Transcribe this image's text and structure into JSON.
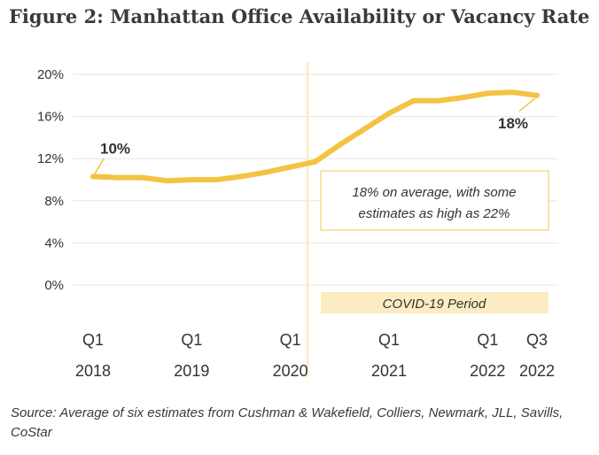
{
  "title": "Figure 2: Manhattan Office Availability or Vacancy Rate",
  "source": "Source: Average of six estimates from Cushman & Wakefield, Colliers, Newmark, JLL, Savills, CoStar",
  "colors": {
    "line": "#f5c242",
    "annotation_fill": "#fbecc1",
    "annotation_border": "#f8e3a6",
    "grid": "#e6e6e6"
  },
  "chart_data": {
    "type": "line",
    "ylim": [
      0,
      20
    ],
    "yticks": [
      "20%",
      "16%",
      "12%",
      "8%",
      "4%",
      "0%"
    ],
    "ytick_values": [
      20,
      16,
      12,
      8,
      4,
      0
    ],
    "xtick_labels": [
      {
        "quarter": "Q1",
        "year": "2018",
        "x": 0
      },
      {
        "quarter": "Q1",
        "year": "2019",
        "x": 4
      },
      {
        "quarter": "Q1",
        "year": "2020",
        "x": 8
      },
      {
        "quarter": "Q1",
        "year": "2021",
        "x": 12
      },
      {
        "quarter": "Q1",
        "year": "2022",
        "x": 16
      },
      {
        "quarter": "Q3",
        "year": "2022",
        "x": 18
      }
    ],
    "x": [
      0,
      1,
      2,
      3,
      4,
      5,
      6,
      7,
      8,
      9,
      10,
      11,
      12,
      13,
      14,
      15,
      16,
      17,
      18
    ],
    "values": [
      10.3,
      10.2,
      10.2,
      9.9,
      10.0,
      10.0,
      10.3,
      10.7,
      11.2,
      11.7,
      13.3,
      14.8,
      16.3,
      17.5,
      17.5,
      17.8,
      18.2,
      18.3,
      18.0
    ],
    "covid_start_x": 8.7,
    "labels": {
      "start": "10%",
      "end": "18%",
      "average_note_line1": "18% on average, with some",
      "average_note_line2": "estimates as high as 22%",
      "covid_period": "COVID-19 Period"
    }
  }
}
